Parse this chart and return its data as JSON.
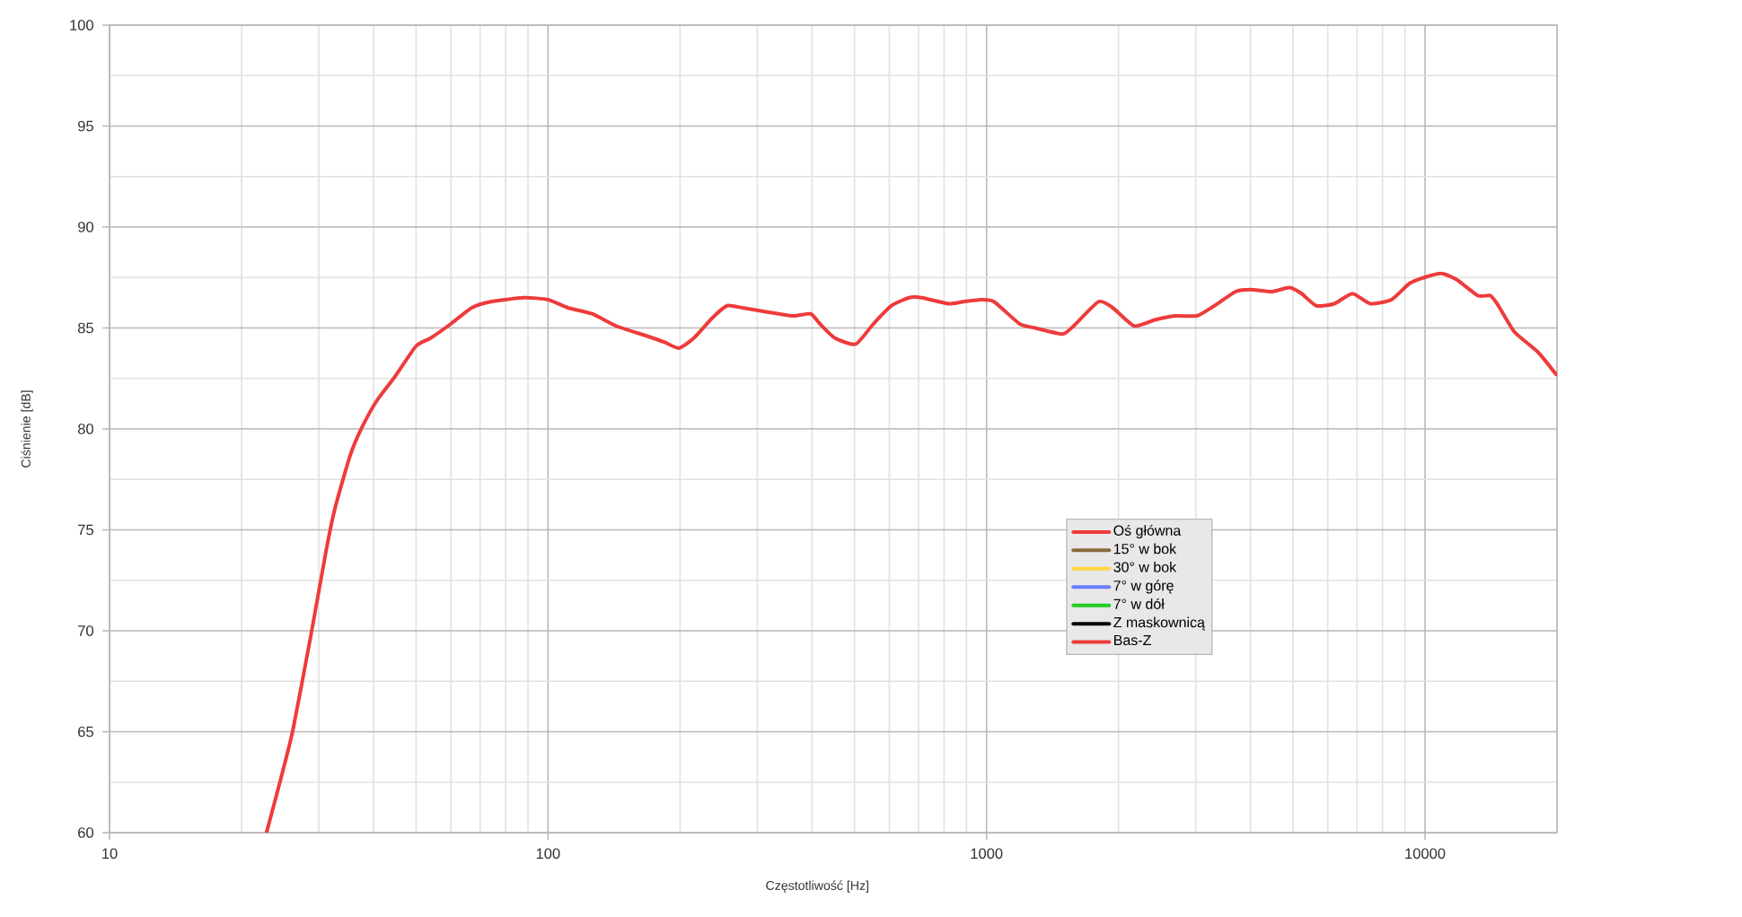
{
  "chart_data": {
    "type": "line",
    "xlabel": "Częstotliwość [Hz]",
    "ylabel": "Ciśnienie [dB]",
    "log": "x",
    "grid": true,
    "legend": "bottom right",
    "xlim": [
      10,
      20000
    ],
    "xticks": [
      10,
      100,
      1000,
      10000
    ],
    "ylim": [
      60,
      100
    ],
    "yticks": [
      60,
      {
        "value": 62.5,
        "label": null
      },
      65,
      {
        "value": 67.5,
        "label": null
      },
      70,
      {
        "value": 72.5,
        "label": null
      },
      75,
      {
        "value": 77.5,
        "label": null
      },
      80,
      {
        "value": 82.5,
        "label": null
      },
      85,
      {
        "value": 87.5,
        "label": null
      },
      90,
      {
        "value": 92.5,
        "label": null
      },
      95,
      {
        "value": 97.5,
        "label": null
      },
      100
    ],
    "x": [
      22.8,
      24.6,
      26.2,
      28.8,
      31.2,
      32.7,
      35.4,
      37.7,
      40.7,
      44.8,
      50,
      54,
      60,
      67,
      74,
      88,
      100,
      111,
      126,
      143,
      168,
      184,
      199,
      215,
      237,
      256,
      277,
      314,
      362,
      397,
      417,
      451,
      503,
      552,
      607,
      667,
      711,
      818,
      886,
      973,
      1040,
      1190,
      1290,
      1490,
      1580,
      1800,
      1940,
      2170,
      2420,
      2700,
      3020,
      3310,
      3700,
      4000,
      4470,
      4910,
      5230,
      5650,
      6210,
      6830,
      7500,
      8380,
      9210,
      9960,
      10900,
      11800,
      13200,
      14100,
      14700,
      16000,
      18100,
      19900
    ],
    "series": [
      {
        "name": "Oś główna",
        "color": "#ee3b3b",
        "values": [
          60.0,
          62.7,
          65.1,
          69.8,
          74.0,
          76.1,
          78.7,
          80.1,
          81.4,
          82.6,
          84.1,
          84.5,
          85.2,
          86.0,
          86.3,
          86.5,
          86.4,
          86.0,
          85.7,
          85.1,
          84.6,
          84.3,
          84.0,
          84.5,
          85.5,
          86.1,
          86.0,
          85.8,
          85.6,
          85.7,
          85.2,
          84.5,
          84.2,
          85.2,
          86.1,
          86.5,
          86.5,
          86.2,
          86.3,
          86.4,
          86.3,
          85.2,
          85.0,
          84.7,
          85.1,
          86.3,
          86.0,
          85.1,
          85.4,
          85.6,
          85.6,
          86.1,
          86.8,
          86.9,
          86.8,
          87.0,
          86.7,
          86.1,
          86.2,
          86.7,
          86.2,
          86.4,
          87.2,
          87.5,
          87.7,
          87.4,
          86.6,
          86.6,
          86.1,
          84.8,
          83.8,
          82.7
        ]
      },
      {
        "name": "15° w bok",
        "color": "#8b6a3a",
        "values": [
          null,
          null,
          null,
          null,
          null,
          null,
          null,
          null,
          null,
          null,
          null,
          null,
          null,
          null,
          null,
          null,
          null,
          null,
          null,
          null,
          null,
          null,
          null,
          null,
          null,
          null,
          null,
          null,
          null,
          null,
          null,
          null,
          null,
          null,
          null,
          null,
          null,
          null,
          null,
          null,
          null,
          null,
          null,
          null,
          null,
          null,
          null,
          null,
          null,
          null,
          null,
          null,
          null,
          null,
          null,
          null,
          null,
          null,
          null,
          null,
          null,
          null,
          null,
          null,
          null,
          null,
          null,
          null,
          null,
          null,
          null,
          null
        ]
      },
      {
        "name": "30° w bok",
        "color": "#ffd740",
        "values": [
          null,
          null,
          null,
          null,
          null,
          null,
          null,
          null,
          null,
          null,
          null,
          null,
          null,
          null,
          null,
          null,
          null,
          null,
          null,
          null,
          null,
          null,
          null,
          null,
          null,
          null,
          null,
          null,
          null,
          null,
          null,
          null,
          null,
          null,
          null,
          null,
          null,
          null,
          null,
          null,
          null,
          null,
          null,
          null,
          null,
          null,
          null,
          null,
          null,
          null,
          null,
          null,
          null,
          null,
          null,
          null,
          null,
          null,
          null,
          null,
          null,
          null,
          null,
          null,
          null,
          null,
          null,
          null,
          null,
          null,
          null,
          null
        ]
      },
      {
        "name": "7° w górę",
        "color": "#6c7cff",
        "values": [
          null,
          null,
          null,
          null,
          null,
          null,
          null,
          null,
          null,
          null,
          null,
          null,
          null,
          null,
          null,
          null,
          null,
          null,
          null,
          null,
          null,
          null,
          null,
          null,
          null,
          null,
          null,
          null,
          null,
          null,
          null,
          null,
          null,
          null,
          null,
          null,
          null,
          null,
          null,
          null,
          null,
          null,
          null,
          null,
          null,
          null,
          null,
          null,
          null,
          null,
          null,
          null,
          null,
          null,
          null,
          null,
          null,
          null,
          null,
          null,
          null,
          null,
          null,
          null,
          null,
          null,
          null,
          null,
          null,
          null,
          null,
          null
        ]
      },
      {
        "name": "7° w dół",
        "color": "#22cc22",
        "values": [
          null,
          null,
          null,
          null,
          null,
          null,
          null,
          null,
          null,
          null,
          null,
          null,
          null,
          null,
          null,
          null,
          null,
          null,
          null,
          null,
          null,
          null,
          null,
          null,
          null,
          null,
          null,
          null,
          null,
          null,
          null,
          null,
          null,
          null,
          null,
          null,
          null,
          null,
          null,
          null,
          null,
          null,
          null,
          null,
          null,
          null,
          null,
          null,
          null,
          null,
          null,
          null,
          null,
          null,
          null,
          null,
          null,
          null,
          null,
          null,
          null,
          null,
          null,
          null,
          null,
          null,
          null,
          null,
          null,
          null,
          null,
          null
        ]
      },
      {
        "name": "Z maskownicą",
        "color": "#000000",
        "values": [
          null,
          null,
          null,
          null,
          null,
          null,
          null,
          null,
          null,
          null,
          null,
          null,
          null,
          null,
          null,
          null,
          null,
          null,
          null,
          null,
          null,
          null,
          null,
          null,
          null,
          null,
          null,
          null,
          null,
          null,
          null,
          null,
          null,
          null,
          null,
          null,
          null,
          null,
          null,
          null,
          null,
          null,
          null,
          null,
          null,
          null,
          null,
          null,
          null,
          null,
          null,
          null,
          null,
          null,
          null,
          null,
          null,
          null,
          null,
          null,
          null,
          null,
          null,
          null,
          null,
          null,
          null,
          null,
          null,
          null,
          null,
          null
        ]
      },
      {
        "name": "Bas-Z",
        "color": "#ee3b3b",
        "values": [
          null,
          null,
          null,
          null,
          null,
          null,
          null,
          null,
          null,
          null,
          null,
          null,
          null,
          null,
          null,
          null,
          null,
          null,
          null,
          null,
          null,
          null,
          null,
          null,
          null,
          null,
          null,
          null,
          null,
          null,
          null,
          null,
          null,
          null,
          null,
          null,
          null,
          null,
          null,
          null,
          null,
          null,
          null,
          null,
          null,
          null,
          null,
          null,
          null,
          null,
          null,
          null,
          null,
          null,
          null,
          null,
          null,
          null,
          null,
          null,
          null,
          null,
          null,
          null,
          null,
          null,
          null,
          null,
          null,
          null,
          null,
          null
        ]
      }
    ]
  }
}
